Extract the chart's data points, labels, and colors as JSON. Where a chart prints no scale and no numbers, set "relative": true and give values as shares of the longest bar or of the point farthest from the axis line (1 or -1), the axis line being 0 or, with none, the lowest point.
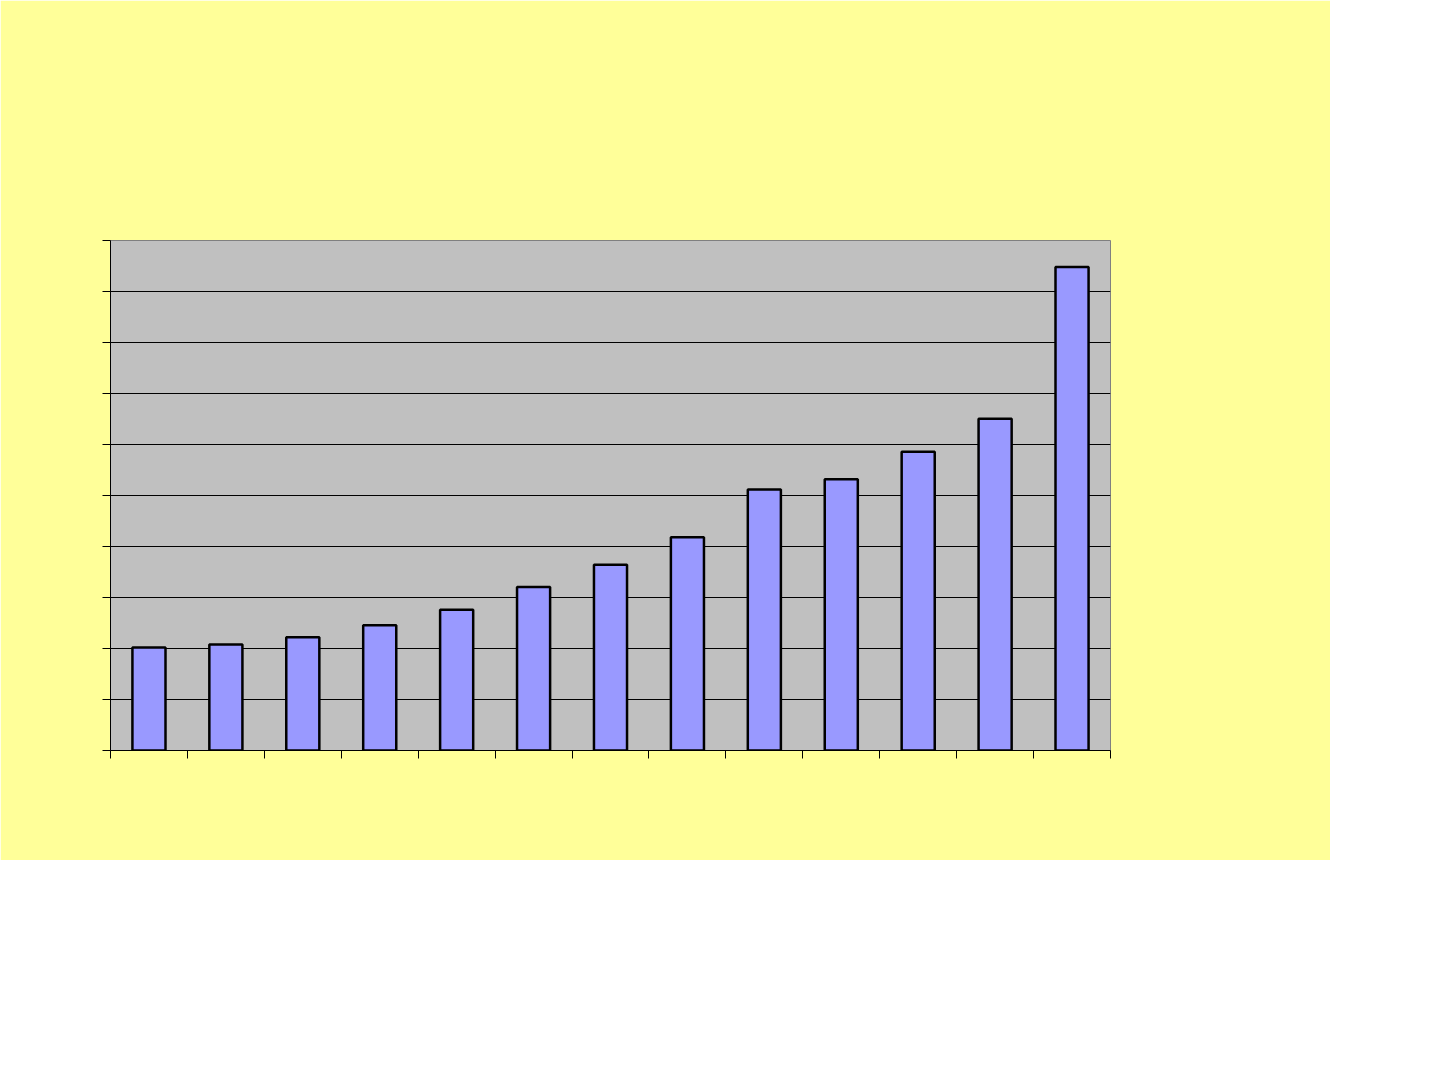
{
  "chart_data": {
    "type": "bar",
    "relative": true,
    "categories": [
      null,
      null,
      null,
      null,
      null,
      null,
      null,
      null,
      null,
      null,
      null,
      null,
      null
    ],
    "series": [
      {
        "color": "#9999ff",
        "values": [
          0.213,
          0.219,
          0.234,
          0.259,
          0.291,
          0.338,
          0.384,
          0.441,
          0.54,
          0.561,
          0.618,
          0.686,
          1
        ]
      }
    ],
    "grid": "y"
  }
}
